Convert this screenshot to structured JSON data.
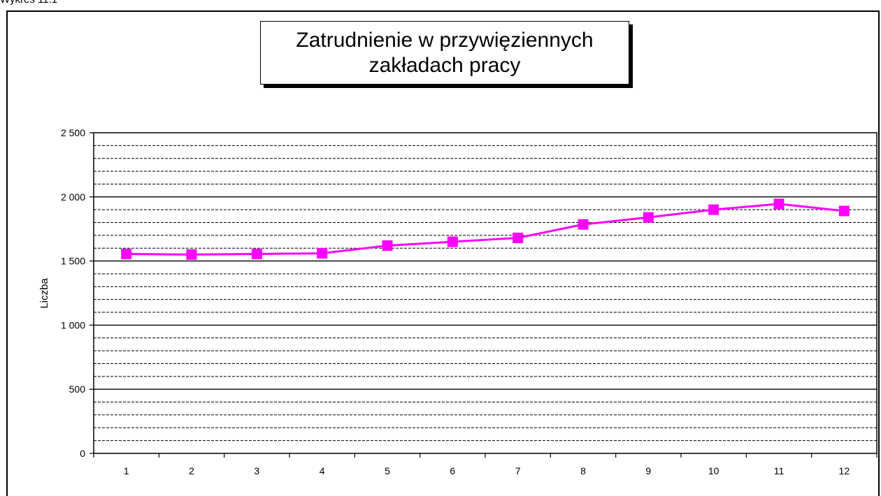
{
  "page": {
    "caption": "Wykres 11.1"
  },
  "chart_data": {
    "type": "line",
    "title_lines": [
      "Zatrudnienie w przywięziennych",
      "zakładach pracy"
    ],
    "xlabel": "",
    "ylabel": "Liczba",
    "categories": [
      "1",
      "2",
      "3",
      "4",
      "5",
      "6",
      "7",
      "8",
      "9",
      "10",
      "11",
      "12"
    ],
    "series": [
      {
        "values": [
          1555,
          1550,
          1555,
          1560,
          1620,
          1650,
          1680,
          1785,
          1840,
          1900,
          1945,
          1890
        ],
        "color": "#ff00ff"
      }
    ],
    "ylim": [
      0,
      2500
    ],
    "yticks": [
      0,
      500,
      1000,
      1500,
      2000,
      2500
    ],
    "ytick_labels": [
      "0",
      "500",
      "1 000",
      "1 500",
      "2 000",
      "2 500"
    ],
    "grid_step": 100,
    "grid_style": "dashed at every 100, solid at every 500",
    "legend": "none"
  }
}
